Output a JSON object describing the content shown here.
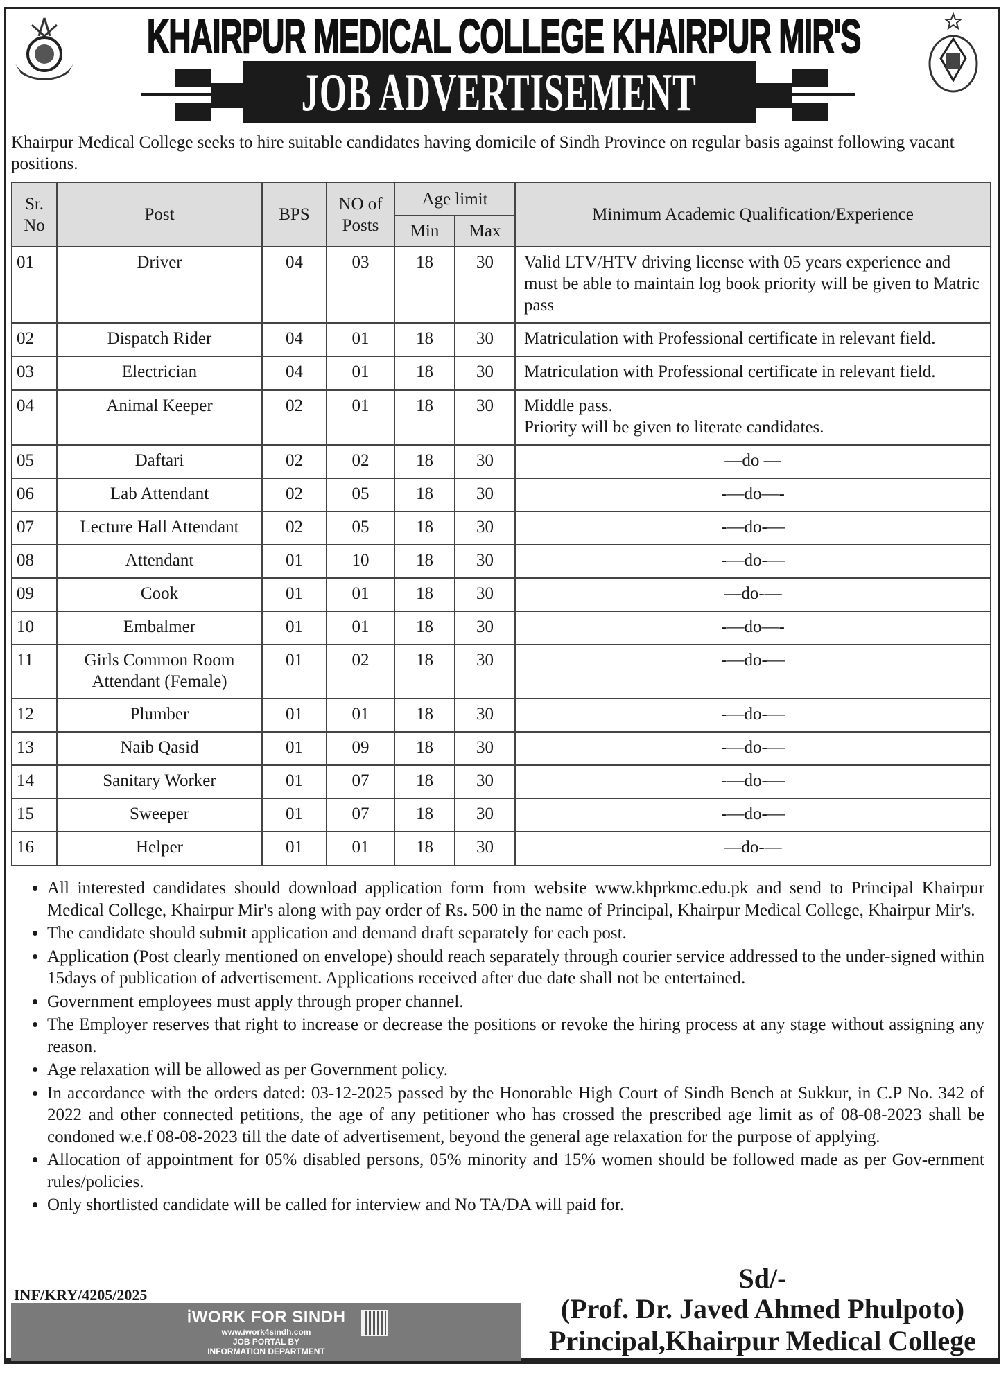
{
  "header": {
    "title": "KHAIRPUR MEDICAL COLLEGE KHAIRPUR MIR'S",
    "banner": "JOB ADVERTISEMENT"
  },
  "intro": "Khairpur Medical College seeks to hire suitable candidates having domicile of Sindh Province on regular basis against following vacant positions.",
  "table": {
    "headers": {
      "sr": "Sr. No",
      "post": "Post",
      "bps": "BPS",
      "posts": "NO of Posts",
      "age": "Age limit",
      "min": "Min",
      "max": "Max",
      "qual": "Minimum Academic Qualification/Experience"
    },
    "rows": [
      {
        "sr": "01",
        "post": "Driver",
        "bps": "04",
        "posts": "03",
        "min": "18",
        "max": "30",
        "qual": "Valid LTV/HTV driving license with 05 years experience and must be able to maintain log book priority will be given to Matric pass"
      },
      {
        "sr": "02",
        "post": "Dispatch Rider",
        "bps": "04",
        "posts": "01",
        "min": "18",
        "max": "30",
        "qual": "Matriculation with Professional certificate in relevant field."
      },
      {
        "sr": "03",
        "post": "Electrician",
        "bps": "04",
        "posts": "01",
        "min": "18",
        "max": "30",
        "qual": "Matriculation with Professional certificate in relevant field."
      },
      {
        "sr": "04",
        "post": "Animal Keeper",
        "bps": "02",
        "posts": "01",
        "min": "18",
        "max": "30",
        "qual": "Middle pass.\nPriority will be given to literate candidates."
      },
      {
        "sr": "05",
        "post": "Daftari",
        "bps": "02",
        "posts": "02",
        "min": "18",
        "max": "30",
        "qual": "—do —"
      },
      {
        "sr": "06",
        "post": "Lab Attendant",
        "bps": "02",
        "posts": "05",
        "min": "18",
        "max": "30",
        "qual": "-—do—-"
      },
      {
        "sr": "07",
        "post": "Lecture Hall Attendant",
        "bps": "02",
        "posts": "05",
        "min": "18",
        "max": "30",
        "qual": "-—do-—"
      },
      {
        "sr": "08",
        "post": "Attendant",
        "bps": "01",
        "posts": "10",
        "min": "18",
        "max": "30",
        "qual": "-—do-—"
      },
      {
        "sr": "09",
        "post": "Cook",
        "bps": "01",
        "posts": "01",
        "min": "18",
        "max": "30",
        "qual": "—do-—"
      },
      {
        "sr": "10",
        "post": "Embalmer",
        "bps": "01",
        "posts": "01",
        "min": "18",
        "max": "30",
        "qual": "-—do—-"
      },
      {
        "sr": "11",
        "post": "Girls Common Room Attendant (Female)",
        "bps": "01",
        "posts": "02",
        "min": "18",
        "max": "30",
        "qual": "-—do-—"
      },
      {
        "sr": "12",
        "post": "Plumber",
        "bps": "01",
        "posts": "01",
        "min": "18",
        "max": "30",
        "qual": "-—do-—"
      },
      {
        "sr": "13",
        "post": "Naib Qasid",
        "bps": "01",
        "posts": "09",
        "min": "18",
        "max": "30",
        "qual": "-—do-—"
      },
      {
        "sr": "14",
        "post": "Sanitary Worker",
        "bps": "01",
        "posts": "07",
        "min": "18",
        "max": "30",
        "qual": "-—do-—"
      },
      {
        "sr": "15",
        "post": "Sweeper",
        "bps": "01",
        "posts": "07",
        "min": "18",
        "max": "30",
        "qual": "-—do-—"
      },
      {
        "sr": "16",
        "post": "Helper",
        "bps": "01",
        "posts": "01",
        "min": "18",
        "max": "30",
        "qual": "—do-—"
      }
    ]
  },
  "notes": [
    "All interested candidates should download application form from website www.khprkmc.edu.pk and send to Principal Khairpur Medical College, Khairpur Mir's along with pay order of Rs. 500 in the name of Principal, Khairpur Medical College, Khairpur Mir's.",
    "The candidate should submit application and demand draft separately for each post.",
    "Application (Post clearly mentioned on envelope) should reach separately through courier service addressed to the under-signed within 15days of publication of advertisement. Applications received after due date shall not be entertained.",
    "Government employees must apply through proper channel.",
    "The Employer reserves that right to increase or decrease the positions or revoke the hiring process at any stage without assigning any reason.",
    "Age relaxation will be allowed as per Government policy.",
    "In accordance with the orders dated: 03-12-2025 passed by the Honorable High Court of Sindh Bench at Sukkur, in C.P No. 342 of 2022 and other connected petitions, the age of any petitioner who has crossed the prescribed age limit as of 08-08-2023 shall be condoned w.e.f 08-08-2023 till the date of advertisement, beyond the general age relaxation for the purpose of applying.",
    "Allocation of appointment for 05% disabled persons, 05% minority and 15% women should be followed made as per Gov-ernment rules/policies.",
    "Only shortlisted candidate will be called for interview and No TA/DA will paid for."
  ],
  "footer": {
    "reference": "INF/KRY/4205/2025",
    "portal_brand": "WORK FOR SINDH",
    "portal_url": "www.iwork4sindh.com",
    "portal_line1": "JOB PORTAL BY",
    "portal_line2": "INFORMATION DEPARTMENT",
    "signature": "Sd/-",
    "signatory": "(Prof. Dr. Javed Ahmed Phulpoto)",
    "designation": "Principal,Khairpur Medical College"
  },
  "colors": {
    "banner": "#1b1b1b",
    "table_header": "#dddddd",
    "portal_box": "#7a7a7a"
  }
}
